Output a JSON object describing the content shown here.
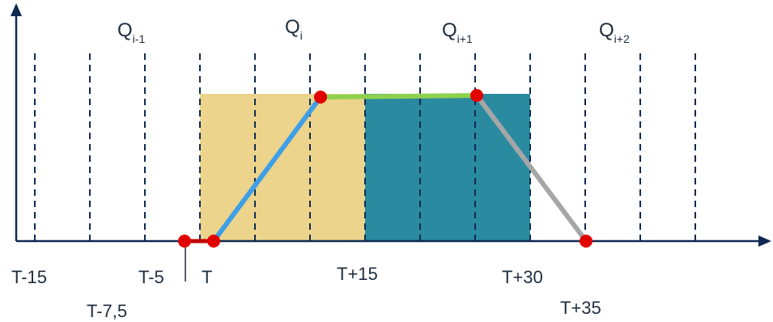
{
  "quarter_labels": [
    {
      "base": "Q",
      "sub": "i-1"
    },
    {
      "base": "Q",
      "sub": "i"
    },
    {
      "base": "Q",
      "sub": "i+1"
    },
    {
      "base": "Q",
      "sub": "i+2"
    }
  ],
  "time_labels": {
    "t_minus_15": "T-15",
    "t_minus_7_5": "T-7,5",
    "t_minus_5": "T-5",
    "t": "T",
    "t_plus_15": "T+15",
    "t_plus_30": "T+30",
    "t_plus_35": "T+35"
  },
  "colors": {
    "axis": "#0f2a52",
    "gridline": "#0f2a52",
    "quarter_i_fill": "#ecd48c",
    "quarter_i_plus_1_fill": "#2a8aa0",
    "segment_pre": "#c00000",
    "segment_ramp_up": "#3f9fe6",
    "segment_plateau": "#8fd14f",
    "segment_ramp_down": "#a6a6a6",
    "point": "#e00000"
  }
}
